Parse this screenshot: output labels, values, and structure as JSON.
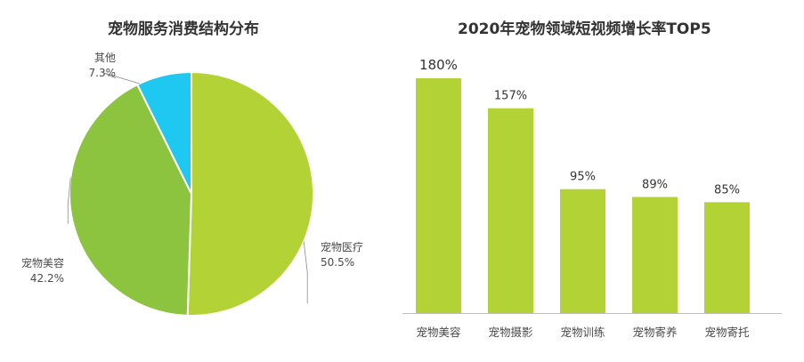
{
  "chart_data": [
    {
      "type": "pie",
      "title": "宠物服务消费结构分布",
      "slices": [
        {
          "label": "宠物医疗",
          "value": 50.5,
          "value_label": "50.5%",
          "color": "#b2d235"
        },
        {
          "label": "宠物美容",
          "value": 42.2,
          "value_label": "42.2%",
          "color": "#8cc43f"
        },
        {
          "label": "其他",
          "value": 7.3,
          "value_label": "7.3%",
          "color": "#1ec8f0"
        }
      ]
    },
    {
      "type": "bar",
      "title": "2020年宠物领域短视频增长率TOP5",
      "categories": [
        "宠物美容",
        "宠物摄影",
        "宠物训练",
        "宠物寄养",
        "宠物寄托"
      ],
      "values": [
        180,
        157,
        95,
        89,
        85
      ],
      "value_labels": [
        "180%",
        "157%",
        "95%",
        "89%",
        "85%"
      ],
      "unit": "%",
      "ylim": [
        0,
        180
      ],
      "bar_color": "#b2d235",
      "grid": false
    }
  ]
}
